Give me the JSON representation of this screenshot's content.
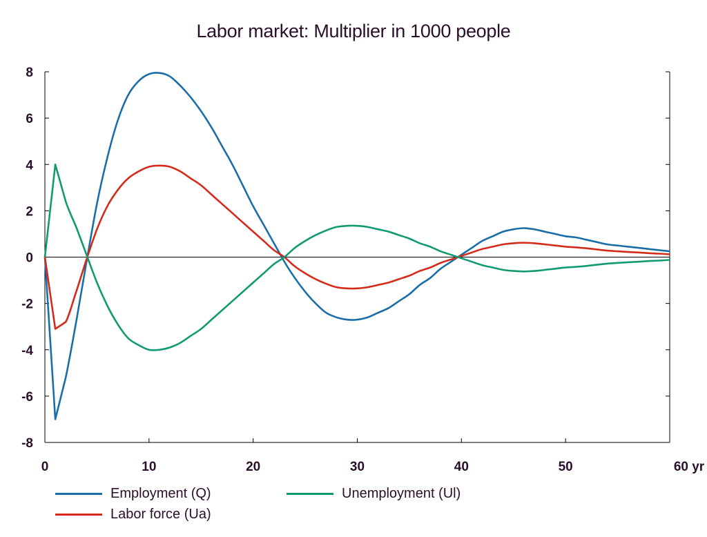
{
  "chart_data": {
    "type": "line",
    "title": "Labor market: Multiplier in 1000 people",
    "xlabel": "",
    "ylabel": "",
    "x_unit_label": "yr",
    "xlim": [
      0,
      60
    ],
    "ylim": [
      -8,
      8
    ],
    "x_ticks": [
      0,
      10,
      20,
      30,
      40,
      50,
      60
    ],
    "x_tick_labels": [
      "0",
      "10",
      "20",
      "30",
      "40",
      "50",
      "60 yr"
    ],
    "y_ticks": [
      8,
      6,
      4,
      2,
      0,
      -2,
      -4,
      -6,
      -8
    ],
    "y_tick_labels": [
      "8",
      "6",
      "4",
      "2",
      "0",
      "-2",
      "-4",
      "-6",
      "-8"
    ],
    "grid": false,
    "legend_position": "bottom",
    "x": [
      0,
      1,
      2,
      3,
      4,
      5,
      6,
      7,
      8,
      9,
      10,
      11,
      12,
      13,
      14,
      15,
      16,
      17,
      18,
      19,
      20,
      21,
      22,
      23,
      24,
      25,
      26,
      27,
      28,
      29,
      30,
      31,
      32,
      33,
      34,
      35,
      36,
      37,
      38,
      39,
      40,
      41,
      42,
      43,
      44,
      45,
      46,
      47,
      48,
      49,
      50,
      51,
      52,
      53,
      54,
      55,
      56,
      57,
      58,
      59,
      60
    ],
    "series": [
      {
        "name": "Employment (Q)",
        "color": "#1a6ea8",
        "values": [
          0,
          -7.0,
          -5.2,
          -2.8,
          -0.2,
          2.3,
          4.3,
          5.9,
          7.0,
          7.6,
          7.9,
          7.95,
          7.8,
          7.4,
          6.9,
          6.3,
          5.6,
          4.8,
          4.0,
          3.1,
          2.2,
          1.4,
          0.6,
          -0.2,
          -0.9,
          -1.5,
          -2.0,
          -2.4,
          -2.6,
          -2.7,
          -2.7,
          -2.6,
          -2.4,
          -2.2,
          -1.9,
          -1.6,
          -1.2,
          -0.9,
          -0.5,
          -0.2,
          0.1,
          0.4,
          0.7,
          0.9,
          1.1,
          1.2,
          1.25,
          1.2,
          1.1,
          1.0,
          0.9,
          0.85,
          0.75,
          0.65,
          0.55,
          0.5,
          0.45,
          0.4,
          0.35,
          0.3,
          0.25
        ]
      },
      {
        "name": "Labor force (Ua)",
        "color": "#d42a1a",
        "values": [
          0,
          -3.1,
          -2.8,
          -1.5,
          -0.1,
          1.2,
          2.2,
          2.9,
          3.4,
          3.7,
          3.9,
          3.95,
          3.9,
          3.7,
          3.4,
          3.1,
          2.7,
          2.3,
          1.9,
          1.5,
          1.1,
          0.7,
          0.3,
          0.0,
          -0.4,
          -0.7,
          -0.95,
          -1.15,
          -1.3,
          -1.35,
          -1.35,
          -1.3,
          -1.2,
          -1.1,
          -0.95,
          -0.8,
          -0.6,
          -0.45,
          -0.25,
          -0.1,
          0.05,
          0.2,
          0.35,
          0.45,
          0.55,
          0.6,
          0.62,
          0.6,
          0.55,
          0.5,
          0.45,
          0.42,
          0.38,
          0.33,
          0.28,
          0.25,
          0.22,
          0.2,
          0.17,
          0.15,
          0.12
        ]
      },
      {
        "name": "Unemployment (Ul)",
        "color": "#0f9a72",
        "values": [
          0,
          4.0,
          2.4,
          1.3,
          0.1,
          -1.1,
          -2.1,
          -2.9,
          -3.5,
          -3.8,
          -4.0,
          -4.0,
          -3.9,
          -3.7,
          -3.4,
          -3.1,
          -2.7,
          -2.3,
          -1.9,
          -1.5,
          -1.1,
          -0.7,
          -0.3,
          0.0,
          0.4,
          0.7,
          0.95,
          1.15,
          1.3,
          1.35,
          1.35,
          1.3,
          1.2,
          1.1,
          0.95,
          0.8,
          0.6,
          0.45,
          0.25,
          0.1,
          -0.05,
          -0.2,
          -0.35,
          -0.45,
          -0.55,
          -0.6,
          -0.62,
          -0.6,
          -0.55,
          -0.5,
          -0.45,
          -0.42,
          -0.38,
          -0.33,
          -0.28,
          -0.25,
          -0.22,
          -0.2,
          -0.17,
          -0.15,
          -0.12
        ]
      }
    ]
  }
}
